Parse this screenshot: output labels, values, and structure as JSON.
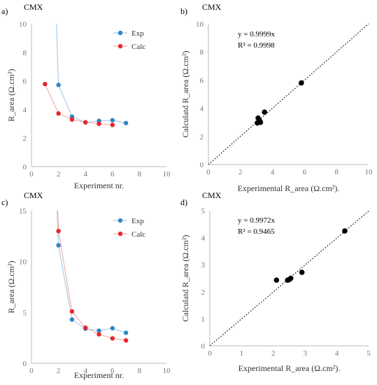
{
  "chart_data": [
    {
      "panel": "a)",
      "type": "line",
      "title": "CMX",
      "xlabel": "Experiment nr.",
      "ylabel": "R_area (Ω.cm²)",
      "xlim": [
        0,
        10
      ],
      "ylim": [
        0,
        10
      ],
      "xticks": [
        "0",
        "2",
        "4",
        "6",
        "8",
        "10"
      ],
      "yticks": [
        "0",
        "2",
        "4",
        "6",
        "8",
        "10"
      ],
      "legend_position": "top-right",
      "series": [
        {
          "name": "Exp",
          "color": "#2e86c8",
          "x": [
            2,
            3,
            4,
            5,
            6,
            7
          ],
          "y": [
            5.72,
            3.5,
            3.1,
            3.2,
            3.25,
            3.05
          ],
          "extends_above": {
            "x": 1.85,
            "y": 10
          }
        },
        {
          "name": "Calc",
          "color": "#e8262b",
          "x": [
            1,
            2,
            3,
            4,
            5,
            6
          ],
          "y": [
            5.78,
            3.72,
            3.3,
            3.1,
            3.0,
            2.92
          ]
        }
      ]
    },
    {
      "panel": "b)",
      "type": "scatter",
      "title": "CMX",
      "xlabel": "Experimental R_area (Ω.cm²).",
      "ylabel": "Calculatd R_area (Ω.cm²)",
      "xlim": [
        0,
        10
      ],
      "ylim": [
        0,
        10
      ],
      "xticks": [
        "0",
        "2",
        "4",
        "6",
        "8",
        "10"
      ],
      "yticks": [
        "0",
        "2",
        "4",
        "6",
        "8",
        "10"
      ],
      "equation": "y = 0.9999x",
      "r2": "R² = 0.9998",
      "trend_slope": 0.9999,
      "points": {
        "x": [
          5.8,
          3.5,
          3.1,
          3.2,
          3.25,
          3.05
        ],
        "y": [
          5.8,
          3.72,
          3.3,
          3.1,
          3.0,
          2.95
        ]
      }
    },
    {
      "panel": "c)",
      "type": "line",
      "title": "CMX",
      "xlabel": "Experiment nr.",
      "ylabel": "R_area (Ω.cm²)",
      "xlim": [
        0,
        10
      ],
      "ylim": [
        0,
        15
      ],
      "xticks": [
        "0",
        "2",
        "4",
        "6",
        "8",
        "10"
      ],
      "yticks": [
        "0",
        "5",
        "10",
        "15"
      ],
      "legend_position": "top-right",
      "series": [
        {
          "name": "Exp",
          "color": "#2e86c8",
          "x": [
            2,
            3,
            4,
            5,
            6,
            7
          ],
          "y": [
            11.6,
            4.3,
            3.4,
            3.2,
            3.45,
            3.0
          ],
          "extends_above": {
            "x": 1.9,
            "y": 15
          }
        },
        {
          "name": "Calc",
          "color": "#e8262b",
          "x": [
            2,
            3,
            4,
            5,
            6,
            7
          ],
          "y": [
            13.0,
            5.1,
            3.5,
            2.85,
            2.45,
            2.25
          ],
          "extends_above": {
            "x": 1.95,
            "y": 15
          }
        }
      ]
    },
    {
      "panel": "d)",
      "type": "scatter",
      "title": "CMX",
      "xlabel": "Experimental R_area (Ω.cm²).",
      "ylabel": "Calculatd R_area (Ω.cm²)",
      "xlim": [
        0,
        5
      ],
      "ylim": [
        0,
        5
      ],
      "xticks": [
        "0",
        "1",
        "2",
        "3",
        "4",
        "5"
      ],
      "yticks": [
        "0",
        "1",
        "2",
        "3",
        "4",
        "5"
      ],
      "equation": "y = 0.9972x",
      "r2": "R² = 0.9465",
      "trend_slope": 0.9972,
      "points": {
        "x": [
          4.25,
          2.9,
          2.55,
          2.45,
          2.5,
          2.1
        ],
        "y": [
          4.25,
          2.72,
          2.5,
          2.43,
          2.45,
          2.43
        ]
      }
    }
  ]
}
